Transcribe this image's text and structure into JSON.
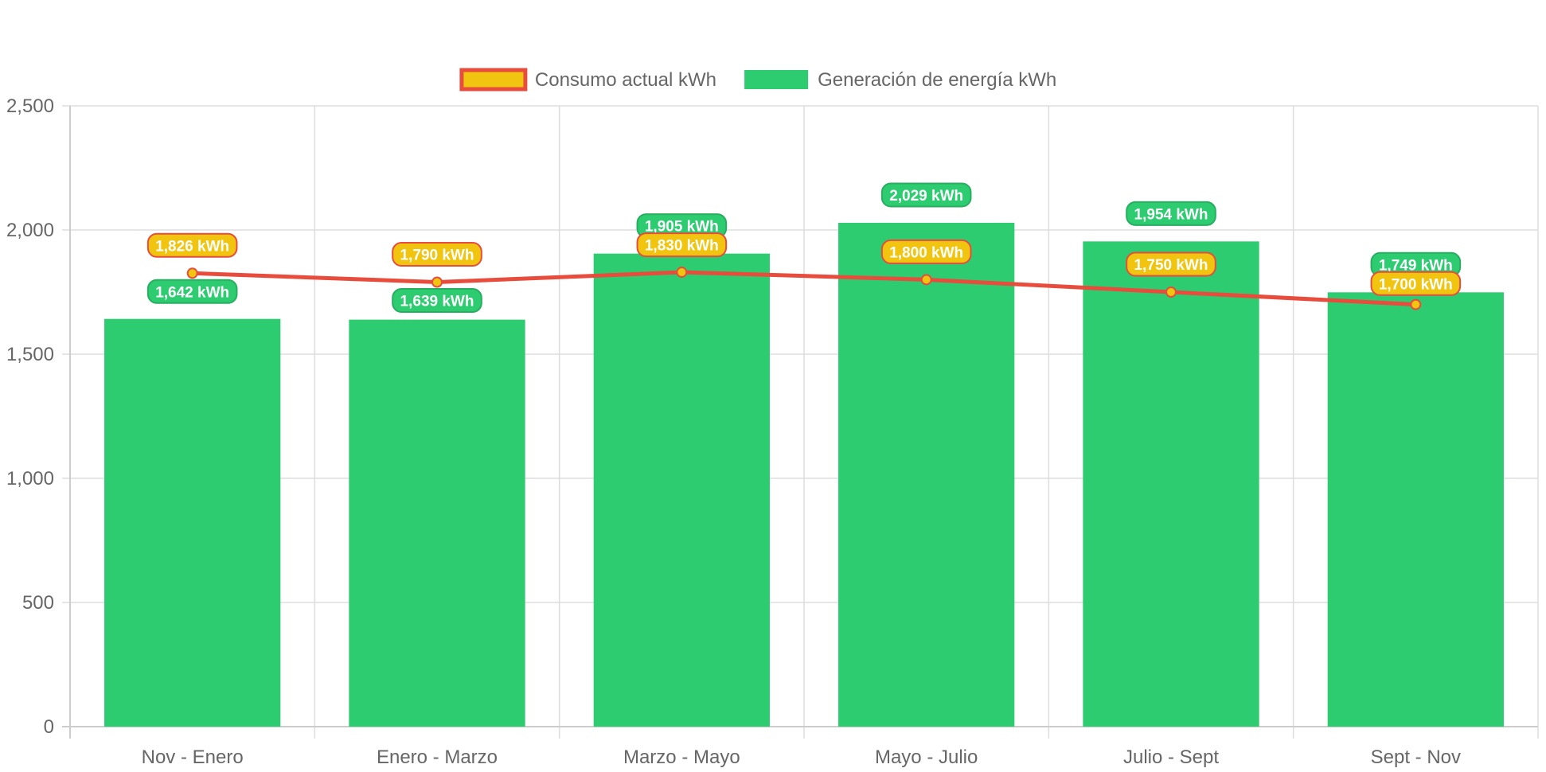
{
  "chart_data": {
    "type": "bar",
    "categories": [
      "Nov - Enero",
      "Enero - Marzo",
      "Marzo - Mayo",
      "Mayo - Julio",
      "Julio - Sept",
      "Sept - Nov"
    ],
    "series": [
      {
        "name": "Generación de energía kWh",
        "type": "bar",
        "values": [
          1642,
          1639,
          1905,
          2029,
          1954,
          1749
        ],
        "labels": [
          "1,642 kWh",
          "1,639 kWh",
          "1,905 kWh",
          "2,029 kWh",
          "1,954 kWh",
          "1,749 kWh"
        ],
        "color": "#2ecc71"
      },
      {
        "name": "Consumo actual kWh",
        "type": "line",
        "values": [
          1826,
          1790,
          1830,
          1800,
          1750,
          1700
        ],
        "labels": [
          "1,826 kWh",
          "1,790 kWh",
          "1,830 kWh",
          "1,800 kWh",
          "1,750 kWh",
          "1,700 kWh"
        ],
        "color": "#e74c3c",
        "point_color": "#f1c40f"
      }
    ],
    "legend": [
      {
        "label": "Consumo actual kWh",
        "fill": "#f1c40f",
        "stroke": "#e74c3c"
      },
      {
        "label": "Generación de energía kWh",
        "fill": "#2ecc71",
        "stroke": "#2ecc71"
      }
    ],
    "legend_position": "top",
    "ylim": [
      0,
      2500
    ],
    "y_ticks": [
      0,
      500,
      1000,
      1500,
      2000,
      2500
    ],
    "y_tick_labels": [
      "0",
      "500",
      "1,000",
      "1,500",
      "2,000",
      "2,500"
    ],
    "grid": true
  }
}
